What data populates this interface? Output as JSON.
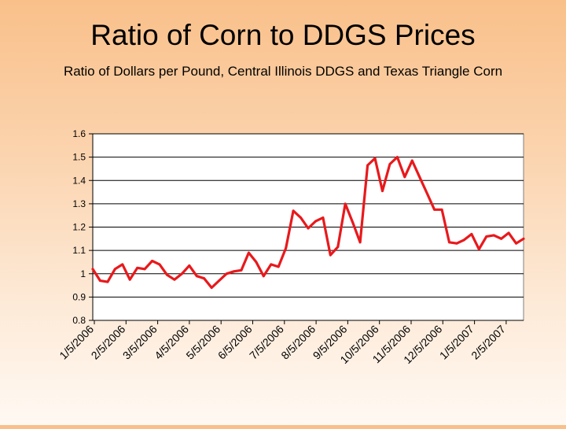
{
  "title": "Ratio of Corn to DDGS Prices",
  "subtitle": "Ratio of Dollars per Pound, Central Illinois DDGS and Texas Triangle Corn",
  "colors": {
    "line": "#e8191c",
    "grid": "#000000",
    "plot_bg": "#ffffff"
  },
  "chart_data": {
    "type": "line",
    "title": "",
    "xlabel": "",
    "ylabel": "",
    "ylim": [
      0.8,
      1.6
    ],
    "yticks": [
      0.8,
      0.9,
      1,
      1.1,
      1.2,
      1.3,
      1.4,
      1.5,
      1.6
    ],
    "xtick_labels": [
      "1/5/2006",
      "2/5/2006",
      "3/5/2006",
      "4/5/2006",
      "5/5/2006",
      "6/5/2006",
      "7/5/2006",
      "8/5/2006",
      "9/5/2006",
      "10/5/2006",
      "11/5/2006",
      "12/5/2006",
      "1/5/2007",
      "2/5/2007"
    ],
    "grid": "horizontal",
    "series": [
      {
        "values": [
          1.02,
          0.97,
          0.965,
          1.02,
          1.04,
          0.975,
          1.025,
          1.02,
          1.055,
          1.04,
          0.995,
          0.975,
          1.0,
          1.035,
          0.99,
          0.98,
          0.94,
          0.97,
          1.0,
          1.01,
          1.015,
          1.09,
          1.05,
          0.99,
          1.04,
          1.03,
          1.11,
          1.27,
          1.24,
          1.195,
          1.225,
          1.24,
          1.08,
          1.115,
          1.3,
          1.22,
          1.135,
          1.465,
          1.495,
          1.355,
          1.47,
          1.5,
          1.415,
          1.485,
          1.415,
          1.345,
          1.275,
          1.275,
          1.135,
          1.13,
          1.145,
          1.17,
          1.105,
          1.16,
          1.165,
          1.15,
          1.175,
          1.13,
          1.15
        ]
      }
    ]
  }
}
